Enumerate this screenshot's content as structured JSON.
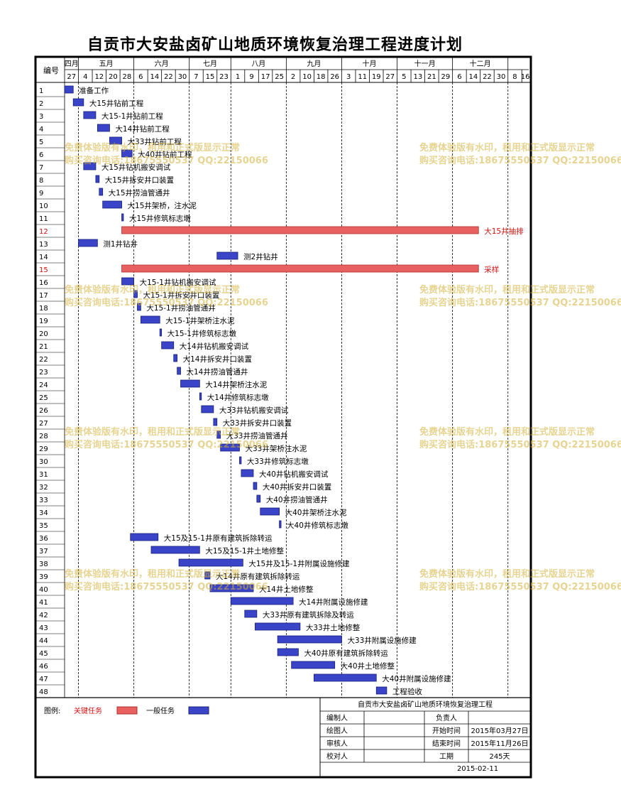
{
  "title": "自贡市大安盐卤矿山地质环境恢复治理工程进度计划",
  "header": {
    "id_label": "编号",
    "months": [
      "四月",
      "五月",
      "六月",
      "七月",
      "八月",
      "九月",
      "十月",
      "十一月",
      "十二月"
    ],
    "days": [
      "27",
      "4",
      "12",
      "20",
      "28",
      "6",
      "14",
      "22",
      "30",
      "7",
      "15",
      "23",
      "1",
      "9",
      "17",
      "25",
      "2",
      "10",
      "18",
      "26",
      "3",
      "11",
      "19",
      "27",
      "5",
      "13",
      "21",
      "29",
      "6",
      "14",
      "22",
      "30",
      "8",
      "16"
    ]
  },
  "chart_data": {
    "type": "gantt",
    "x_unit": "date",
    "x_range": [
      "2015-03-27",
      "2015-12-20"
    ],
    "tick_dates": [
      "2015-03-27",
      "2015-04-04",
      "2015-04-12",
      "2015-04-20",
      "2015-04-28",
      "2015-05-06",
      "2015-05-14",
      "2015-05-22",
      "2015-05-30",
      "2015-06-07",
      "2015-06-15",
      "2015-06-23",
      "2015-07-01",
      "2015-07-09",
      "2015-07-17",
      "2015-07-25",
      "2015-08-02",
      "2015-08-10",
      "2015-08-18",
      "2015-08-26",
      "2015-09-03",
      "2015-09-11",
      "2015-09-19",
      "2015-09-27",
      "2015-10-05",
      "2015-10-13",
      "2015-10-21",
      "2015-10-29",
      "2015-11-06",
      "2015-11-14",
      "2015-11-22",
      "2015-11-30",
      "2015-12-08",
      "2015-12-16"
    ],
    "tasks": [
      {
        "id": "1",
        "name": "准备工作",
        "start": "2015-03-27",
        "end": "2015-04-01",
        "type": "normal"
      },
      {
        "id": "2",
        "name": "大15井钻前工程",
        "start": "2015-04-01",
        "end": "2015-04-07",
        "type": "normal"
      },
      {
        "id": "3",
        "name": "大15-1井钻前工程",
        "start": "2015-04-07",
        "end": "2015-04-14",
        "type": "normal"
      },
      {
        "id": "4",
        "name": "大14井钻前工程",
        "start": "2015-04-15",
        "end": "2015-04-22",
        "type": "normal"
      },
      {
        "id": "5",
        "name": "大33井钻前工程",
        "start": "2015-04-22",
        "end": "2015-04-29",
        "type": "normal"
      },
      {
        "id": "6",
        "name": "大40井钻前工程",
        "start": "2015-04-29",
        "end": "2015-05-05",
        "type": "normal"
      },
      {
        "id": "7",
        "name": "大15井钻机搬安调试",
        "start": "2015-04-07",
        "end": "2015-04-14",
        "type": "normal"
      },
      {
        "id": "8",
        "name": "大15井拆安井口装置",
        "start": "2015-04-14",
        "end": "2015-04-16",
        "type": "normal"
      },
      {
        "id": "9",
        "name": "大15井捞油管通井",
        "start": "2015-04-16",
        "end": "2015-04-18",
        "type": "normal"
      },
      {
        "id": "10",
        "name": "大15井架桥，注水泥",
        "start": "2015-04-18",
        "end": "2015-04-29",
        "type": "normal"
      },
      {
        "id": "11",
        "name": "大15井修筑标志墩",
        "start": "2015-04-29",
        "end": "2015-04-30",
        "type": "normal"
      },
      {
        "id": "12",
        "name": "大15井抽排",
        "start": "2015-04-29",
        "end": "2015-11-21",
        "type": "critical"
      },
      {
        "id": "13",
        "name": "测1井钻井",
        "start": "2015-04-04",
        "end": "2015-04-15",
        "type": "normal"
      },
      {
        "id": "14",
        "name": "测2井钻井",
        "start": "2015-06-23",
        "end": "2015-07-05",
        "type": "normal"
      },
      {
        "id": "15",
        "name": "采样",
        "start": "2015-04-29",
        "end": "2015-11-21",
        "type": "critical"
      },
      {
        "id": "16",
        "name": "大15-1井钻机搬安调试",
        "start": "2015-04-29",
        "end": "2015-05-06",
        "type": "normal"
      },
      {
        "id": "17",
        "name": "大15-1井拆安井口装置",
        "start": "2015-05-06",
        "end": "2015-05-08",
        "type": "normal"
      },
      {
        "id": "18",
        "name": "大15-1井捞油管通井",
        "start": "2015-05-08",
        "end": "2015-05-10",
        "type": "normal"
      },
      {
        "id": "19",
        "name": "大15-1井架桥注水泥",
        "start": "2015-05-10",
        "end": "2015-05-21",
        "type": "normal"
      },
      {
        "id": "20",
        "name": "大15-1井修筑标志墩",
        "start": "2015-05-21",
        "end": "2015-05-22",
        "type": "normal"
      },
      {
        "id": "21",
        "name": "大14井钻机搬安调试",
        "start": "2015-05-22",
        "end": "2015-05-29",
        "type": "normal"
      },
      {
        "id": "22",
        "name": "大14井拆安井口装置",
        "start": "2015-05-29",
        "end": "2015-05-31",
        "type": "normal"
      },
      {
        "id": "23",
        "name": "大14井捞油管通井",
        "start": "2015-05-31",
        "end": "2015-06-02",
        "type": "normal"
      },
      {
        "id": "24",
        "name": "大14井架桥注水泥",
        "start": "2015-06-02",
        "end": "2015-06-13",
        "type": "normal"
      },
      {
        "id": "25",
        "name": "大14井修筑标志墩",
        "start": "2015-06-13",
        "end": "2015-06-14",
        "type": "normal"
      },
      {
        "id": "26",
        "name": "大33井钻机搬安调试",
        "start": "2015-06-14",
        "end": "2015-06-21",
        "type": "normal"
      },
      {
        "id": "27",
        "name": "大33井拆安井口装置",
        "start": "2015-06-21",
        "end": "2015-06-23",
        "type": "normal"
      },
      {
        "id": "28",
        "name": "大33井捞油管通井",
        "start": "2015-06-23",
        "end": "2015-06-25",
        "type": "normal"
      },
      {
        "id": "29",
        "name": "大33井架桥注水泥",
        "start": "2015-06-25",
        "end": "2015-07-06",
        "type": "normal"
      },
      {
        "id": "30",
        "name": "大33井修筑标志墩",
        "start": "2015-07-06",
        "end": "2015-07-07",
        "type": "normal"
      },
      {
        "id": "31",
        "name": "大40井钻机搬安调试",
        "start": "2015-07-07",
        "end": "2015-07-14",
        "type": "normal"
      },
      {
        "id": "32",
        "name": "大40井拆安井口装置",
        "start": "2015-07-14",
        "end": "2015-07-16",
        "type": "normal"
      },
      {
        "id": "33",
        "name": "大40井捞油管通井",
        "start": "2015-07-16",
        "end": "2015-07-18",
        "type": "normal"
      },
      {
        "id": "34",
        "name": "大40井架桥注水泥",
        "start": "2015-07-18",
        "end": "2015-07-29",
        "type": "normal"
      },
      {
        "id": "35",
        "name": "大40井修筑标志墩",
        "start": "2015-07-29",
        "end": "2015-07-30",
        "type": "normal"
      },
      {
        "id": "36",
        "name": "大15及15-1井原有建筑拆除转运",
        "start": "2015-05-04",
        "end": "2015-05-20",
        "type": "normal"
      },
      {
        "id": "37",
        "name": "大15及15-1井土地修整",
        "start": "2015-05-16",
        "end": "2015-06-13",
        "type": "normal"
      },
      {
        "id": "38",
        "name": "大15井及15-1井附属设施修建",
        "start": "2015-06-01",
        "end": "2015-07-08",
        "type": "normal"
      },
      {
        "id": "39",
        "name": "大14井原有建筑拆除转运",
        "start": "2015-06-16",
        "end": "2015-06-19",
        "type": "normal"
      },
      {
        "id": "40",
        "name": "大14井土地修整",
        "start": "2015-06-19",
        "end": "2015-07-14",
        "type": "normal"
      },
      {
        "id": "41",
        "name": "大14井附属设施修建",
        "start": "2015-07-01",
        "end": "2015-08-06",
        "type": "normal"
      },
      {
        "id": "42",
        "name": "大33井原有建筑拆除及转运",
        "start": "2015-07-09",
        "end": "2015-07-16",
        "type": "normal"
      },
      {
        "id": "43",
        "name": "大33井土地修整",
        "start": "2015-07-15",
        "end": "2015-08-10",
        "type": "normal"
      },
      {
        "id": "44",
        "name": "大33井附属设施修建",
        "start": "2015-07-28",
        "end": "2015-09-03",
        "type": "normal"
      },
      {
        "id": "45",
        "name": "大40井原有建筑拆除转运",
        "start": "2015-07-28",
        "end": "2015-08-09",
        "type": "normal"
      },
      {
        "id": "46",
        "name": "大40井土地修整",
        "start": "2015-08-05",
        "end": "2015-08-30",
        "type": "normal"
      },
      {
        "id": "47",
        "name": "大40井附属设施修建",
        "start": "2015-08-18",
        "end": "2015-09-23",
        "type": "normal"
      },
      {
        "id": "48",
        "name": "工程验收",
        "start": "2015-09-23",
        "end": "2015-09-29",
        "type": "normal"
      }
    ]
  },
  "colors": {
    "critical_fill": "#e86060",
    "critical_stroke": "#b03030",
    "critical_label": "#d01010",
    "normal_fill": "#3a44c8",
    "normal_stroke": "#18207a",
    "month_line": "#000000",
    "day_line": "#bbbbbb",
    "grid_border": "#000000"
  },
  "legend": {
    "label": "图例:",
    "critical_label": "关键任务",
    "normal_label": "一般任务"
  },
  "info": {
    "project_name": "自贡市大安盐卤矿山地质环境恢复治理工程",
    "rows": [
      {
        "left_label": "编制人",
        "left_value": "",
        "right_label": "负责人",
        "right_value": ""
      },
      {
        "left_label": "绘图人",
        "left_value": "",
        "right_label": "开始时间",
        "right_value": "2015年03月27日"
      },
      {
        "left_label": "审核人",
        "left_value": "",
        "right_label": "结束时间",
        "right_value": "2015年11月26日"
      },
      {
        "left_label": "校对人",
        "left_value": "",
        "right_label": "工期",
        "right_value": "245天"
      }
    ],
    "date": "2015-02-11"
  },
  "watermark": {
    "line1": "免费体验版有水印，租用和正式版显示正常",
    "line2": "购买咨询电话:18675550537 QQ:22150066"
  }
}
